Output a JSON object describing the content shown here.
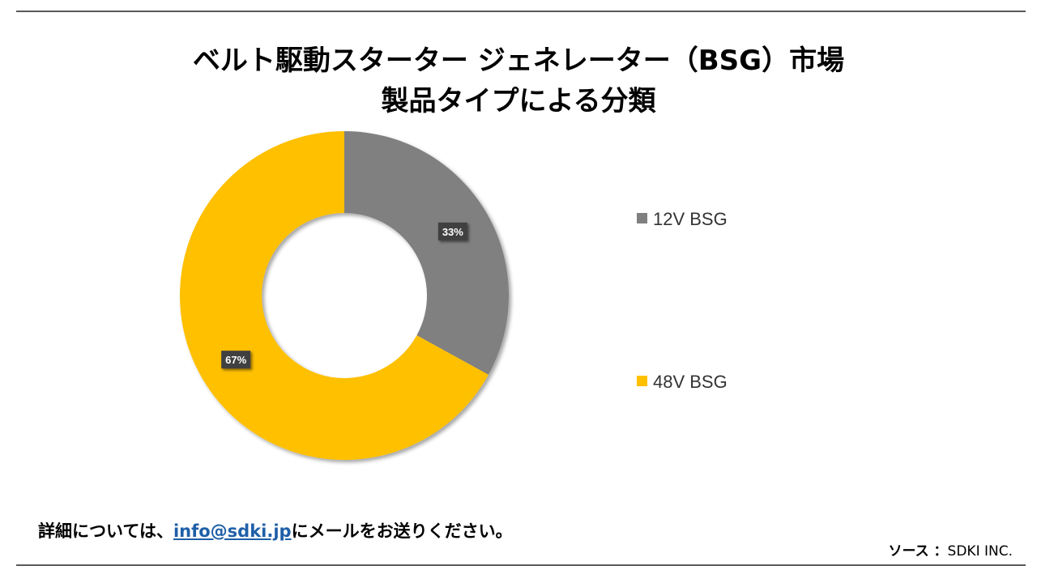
{
  "chart_data": {
    "type": "pie",
    "donut": true,
    "title_line1": "ベルト駆動スターター ジェネレーター（BSG）市場",
    "title_line2": "製品タイプによる分類",
    "categories": [
      "12V BSG",
      "48V BSG"
    ],
    "values": [
      33,
      67
    ],
    "data_labels": [
      "33%",
      "67%"
    ],
    "colors": [
      "#808080",
      "#FFC000"
    ],
    "legend_position": "right"
  },
  "footer": {
    "note_prefix": "詳細については、",
    "email": "info@sdki.jp",
    "note_suffix": "にメールをお送りください。",
    "source_label": "ソース ：",
    "source_value": "SDKI INC."
  }
}
